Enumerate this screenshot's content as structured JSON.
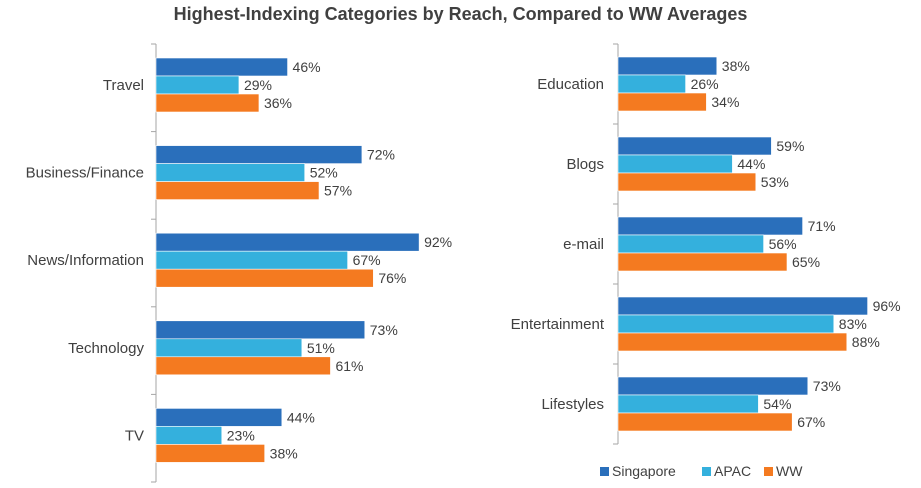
{
  "title": "Highest-Indexing Categories by Reach, Compared to WW Averages",
  "chart_data": [
    {
      "type": "bar",
      "orientation": "horizontal",
      "categories": [
        "Travel",
        "Business/Finance",
        "News/Information",
        "Technology",
        "TV"
      ],
      "series": [
        {
          "name": "Singapore",
          "values": [
            46,
            72,
            92,
            73,
            44
          ]
        },
        {
          "name": "APAC",
          "values": [
            29,
            52,
            67,
            51,
            23
          ]
        },
        {
          "name": "WW",
          "values": [
            36,
            57,
            76,
            61,
            38
          ]
        }
      ],
      "value_suffix": "%",
      "xlim": [
        0,
        100
      ],
      "grid": false
    },
    {
      "type": "bar",
      "orientation": "horizontal",
      "categories": [
        "Education",
        "Blogs",
        "e-mail",
        "Entertainment",
        "Lifestyles"
      ],
      "series": [
        {
          "name": "Singapore",
          "values": [
            38,
            59,
            71,
            96,
            73
          ]
        },
        {
          "name": "APAC",
          "values": [
            26,
            44,
            56,
            83,
            54
          ]
        },
        {
          "name": "WW",
          "values": [
            34,
            53,
            65,
            88,
            67
          ]
        }
      ],
      "value_suffix": "%",
      "xlim": [
        0,
        100
      ],
      "grid": false
    }
  ],
  "legend": {
    "placement": "bottom-right",
    "items": [
      {
        "label": "Singapore",
        "color": "#2a6fbb"
      },
      {
        "label": "APAC",
        "color": "#34b0dd"
      },
      {
        "label": "WW",
        "color": "#f47a20"
      }
    ]
  }
}
